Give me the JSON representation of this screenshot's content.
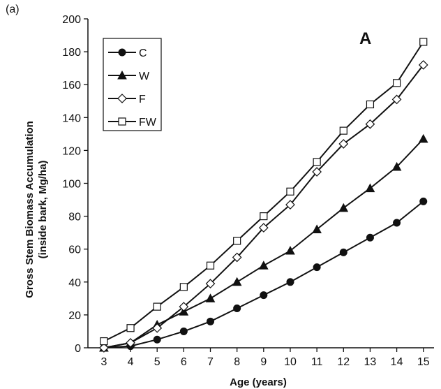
{
  "panel_label": "(a)",
  "chart_data": {
    "type": "line",
    "annotation": "A",
    "xlabel": "Age (years)",
    "ylabel_line1": "Gross Stem Biomass Accumulation",
    "ylabel_line2": "(inside bark, Mg/ha)",
    "x": [
      3,
      4,
      5,
      6,
      7,
      8,
      9,
      10,
      11,
      12,
      13,
      14,
      15
    ],
    "xlim": [
      2.4,
      15.4
    ],
    "ylim": [
      0,
      200
    ],
    "yticks": [
      0,
      20,
      40,
      60,
      80,
      100,
      120,
      140,
      160,
      180,
      200
    ],
    "grid": false,
    "legend_position": "top-left",
    "series": [
      {
        "name": "C",
        "marker": "circle-filled",
        "values": [
          0,
          1,
          5,
          10,
          16,
          24,
          32,
          40,
          49,
          58,
          67,
          76,
          89
        ]
      },
      {
        "name": "W",
        "marker": "triangle-filled",
        "values": [
          0,
          3,
          14,
          22,
          30,
          40,
          50,
          59,
          72,
          85,
          97,
          110,
          127
        ]
      },
      {
        "name": "F",
        "marker": "diamond-open",
        "values": [
          0,
          3,
          12,
          25,
          39,
          55,
          73,
          87,
          107,
          124,
          136,
          151,
          172
        ]
      },
      {
        "name": "FW",
        "marker": "square-open",
        "values": [
          4,
          12,
          25,
          37,
          50,
          65,
          80,
          95,
          113,
          132,
          148,
          161,
          186
        ]
      }
    ]
  }
}
